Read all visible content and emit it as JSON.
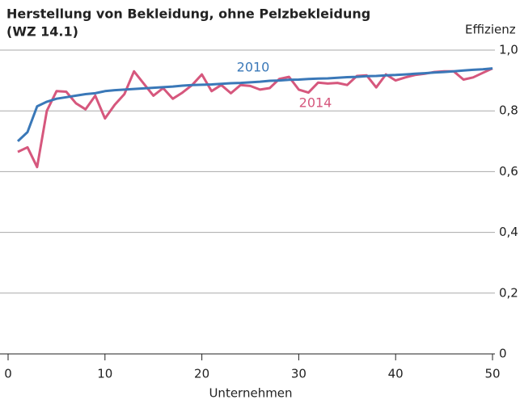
{
  "chart_data": {
    "type": "line",
    "title": [
      "Herstellung von Bekleidung, ohne Pelzbekleidung",
      "(WZ 14.1)"
    ],
    "x_label": "Unternehmen",
    "y_label": "Effizienz",
    "x": [
      1,
      2,
      3,
      4,
      5,
      6,
      7,
      8,
      9,
      10,
      11,
      12,
      13,
      14,
      15,
      16,
      17,
      18,
      19,
      20,
      21,
      22,
      23,
      24,
      25,
      26,
      27,
      28,
      29,
      30,
      31,
      32,
      33,
      34,
      35,
      36,
      37,
      38,
      39,
      40,
      41,
      42,
      43,
      44,
      45,
      46,
      47,
      48,
      49,
      50
    ],
    "series": [
      {
        "name": "2010",
        "color": "#3a78b8",
        "values": [
          0.7,
          0.73,
          0.815,
          0.83,
          0.84,
          0.845,
          0.85,
          0.855,
          0.858,
          0.865,
          0.868,
          0.87,
          0.872,
          0.874,
          0.876,
          0.878,
          0.88,
          0.883,
          0.885,
          0.886,
          0.887,
          0.889,
          0.891,
          0.892,
          0.894,
          0.896,
          0.899,
          0.9,
          0.902,
          0.903,
          0.905,
          0.906,
          0.907,
          0.909,
          0.911,
          0.912,
          0.914,
          0.915,
          0.917,
          0.918,
          0.92,
          0.922,
          0.924,
          0.926,
          0.928,
          0.93,
          0.933,
          0.935,
          0.937,
          0.94
        ]
      },
      {
        "name": "2014",
        "color": "#d6577d",
        "values": [
          0.665,
          0.68,
          0.615,
          0.8,
          0.865,
          0.863,
          0.825,
          0.805,
          0.85,
          0.775,
          0.82,
          0.855,
          0.93,
          0.89,
          0.85,
          0.875,
          0.84,
          0.86,
          0.885,
          0.92,
          0.865,
          0.885,
          0.858,
          0.885,
          0.882,
          0.87,
          0.875,
          0.905,
          0.912,
          0.87,
          0.86,
          0.893,
          0.89,
          0.892,
          0.885,
          0.915,
          0.917,
          0.877,
          0.92,
          0.9,
          0.91,
          0.918,
          0.922,
          0.928,
          0.93,
          0.93,
          0.903,
          0.91,
          0.925,
          0.94
        ]
      }
    ],
    "xlim": [
      0,
      50
    ],
    "xticks": [
      0,
      10,
      20,
      30,
      40,
      50
    ],
    "ylim": [
      0,
      1
    ],
    "yticks": [
      0,
      {
        "value": 0.2,
        "label": "0,2"
      },
      {
        "value": 0.4,
        "label": "0,4"
      },
      {
        "value": 0.6,
        "label": "0,6"
      },
      {
        "value": 0.8,
        "label": "0,8"
      },
      {
        "value": 1,
        "label": "1,0"
      }
    ],
    "grid": true
  }
}
